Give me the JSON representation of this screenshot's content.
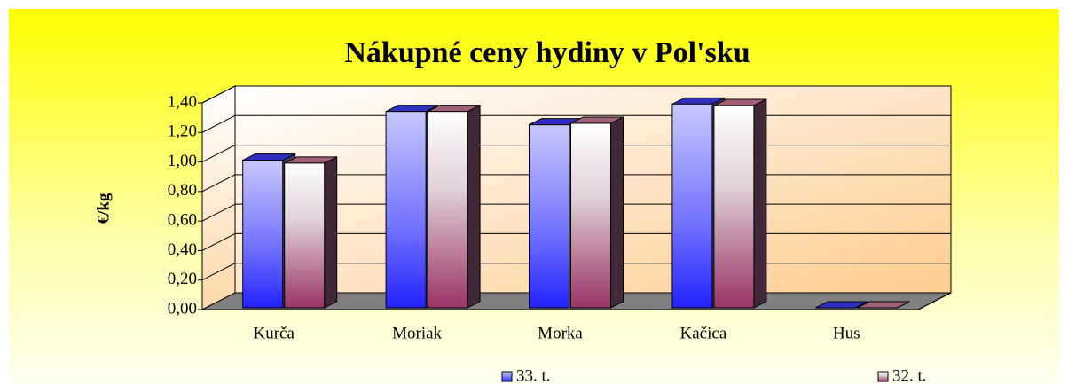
{
  "chart_data": {
    "type": "bar3d",
    "title": "Nákupné ceny hydiny v Pol'sku",
    "y_label": "€/kg",
    "categories": [
      "Kurča",
      "Moriak",
      "Morka",
      "Kačica",
      "Hus"
    ],
    "series": [
      {
        "name": "33. t.",
        "color": "#2222ff",
        "values": [
          1.0,
          1.33,
          1.24,
          1.38,
          0
        ]
      },
      {
        "name": "32. t.",
        "color": "#993366",
        "values": [
          0.98,
          1.33,
          1.25,
          1.37,
          0
        ]
      }
    ],
    "ylim": [
      0,
      1.4
    ],
    "yticks": [
      {
        "value": 0,
        "label": "0,00"
      },
      {
        "value": 0.2,
        "label": "0,20"
      },
      {
        "value": 0.4,
        "label": "0,40"
      },
      {
        "value": 0.6,
        "label": "0,60"
      },
      {
        "value": 0.8,
        "label": "0,80"
      },
      {
        "value": 1.0,
        "label": "1,00"
      },
      {
        "value": 1.2,
        "label": "1,20"
      },
      {
        "value": 1.4,
        "label": "1,40"
      }
    ],
    "grid": true
  }
}
